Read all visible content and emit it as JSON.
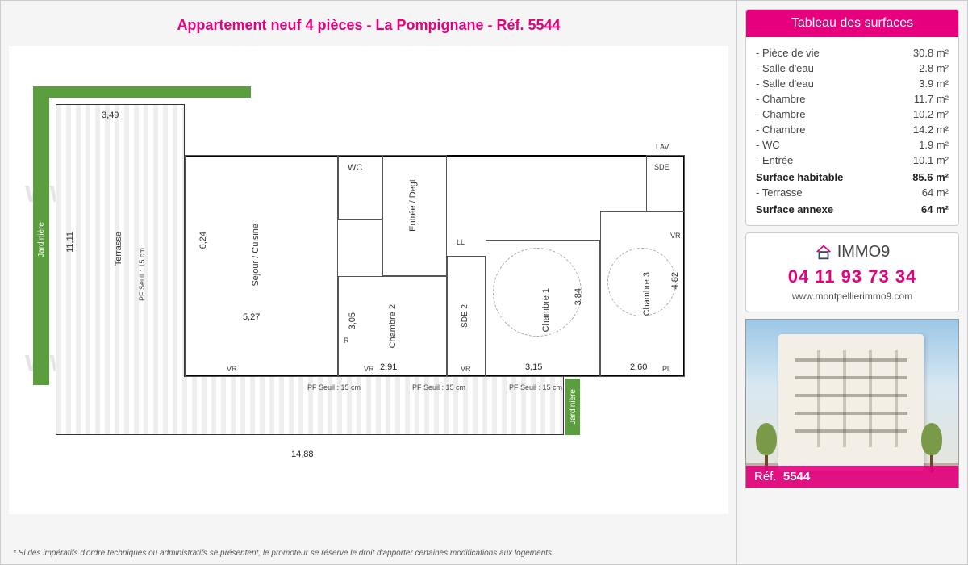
{
  "colors": {
    "accent": "#e6007e",
    "text": "#444444",
    "border": "#cccccc",
    "green": "#5a9e3d",
    "bg": "#f5f5f5"
  },
  "title": "Appartement neuf 4 pièces - La Pompignane - Réf. 5544",
  "watermark": "www.montpellierimmo9.com",
  "disclaimer": "* Si des impératifs d'ordre techniques ou administratifs se présentent, le promoteur se réserve le droit d'apporter certaines modifications aux logements.",
  "surfaces": {
    "header": "Tableau des surfaces",
    "rows": [
      {
        "label": "Pièce de vie",
        "value": "30.8 m²"
      },
      {
        "label": "Salle d'eau",
        "value": "2.8 m²"
      },
      {
        "label": "Salle d'eau",
        "value": "3.9 m²"
      },
      {
        "label": "Chambre",
        "value": "11.7 m²"
      },
      {
        "label": "Chambre",
        "value": "10.2 m²"
      },
      {
        "label": "Chambre",
        "value": "14.2 m²"
      },
      {
        "label": "WC",
        "value": "1.9 m²"
      },
      {
        "label": "Entrée",
        "value": "10.1 m²"
      }
    ],
    "total1_label": "Surface habitable",
    "total1_value": "85.6 m²",
    "extra_label": "Terrasse",
    "extra_value": "64 m²",
    "total2_label": "Surface annexe",
    "total2_value": "64 m²"
  },
  "contact": {
    "brand": "IMMO9",
    "phone": "04 11 93 73 34",
    "website": "www.montpellierimmo9.com"
  },
  "photo": {
    "ref_prefix": "Réf.",
    "ref_value": "5544"
  },
  "floorplan": {
    "jardiniere_label": "Jardinière",
    "terrasse_label": "Terrasse",
    "seuil_label": "PF\nSeuil : 15 cm",
    "rooms": {
      "sejour": "Séjour / Cuisine",
      "entree": "Entrée / Degt",
      "wc": "WC",
      "ch1": "Chambre 1",
      "ch2": "Chambre 2",
      "ch3": "Chambre 3",
      "sde": "SDE",
      "sde2": "SDE 2",
      "lav": "LAV"
    },
    "dims": {
      "d349": "3,49",
      "d1111": "11,11",
      "d624": "6,24",
      "d527": "5,27",
      "d1488": "14,88",
      "d305": "3,05",
      "d291": "2,91",
      "d384": "3,84",
      "d315": "3,15",
      "d260": "2,60",
      "d482": "4,82",
      "vr": "VR",
      "pl": "Pl.",
      "r": "R",
      "ll": "LL"
    }
  }
}
